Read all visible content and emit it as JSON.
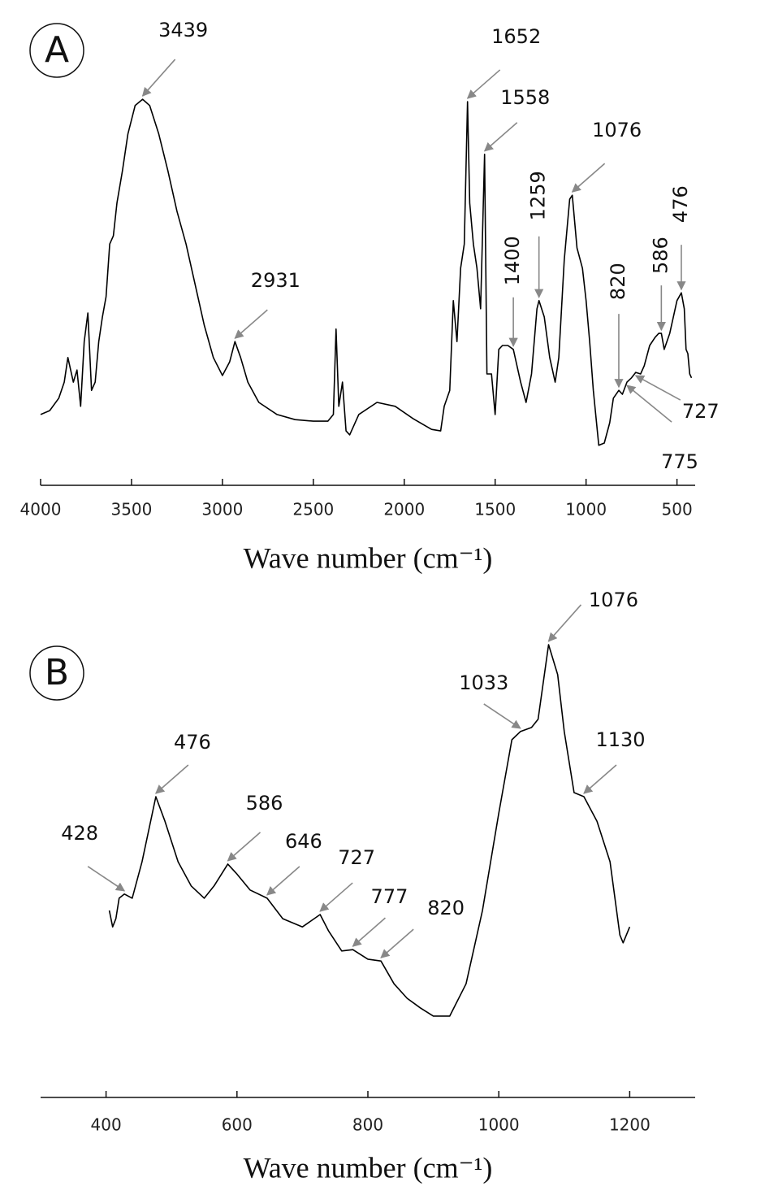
{
  "chart_data": [
    {
      "type": "line",
      "panel": "A",
      "xlabel": "Wave number (cm⁻¹)",
      "color": "#000000",
      "xlim": [
        4000,
        400
      ],
      "xticks": [
        4000,
        3500,
        3000,
        2500,
        2000,
        1500,
        1000,
        500
      ],
      "ylim": [
        0,
        100
      ],
      "x": [
        4000,
        3950,
        3900,
        3870,
        3850,
        3820,
        3800,
        3780,
        3760,
        3740,
        3720,
        3700,
        3680,
        3660,
        3640,
        3620,
        3600,
        3580,
        3550,
        3520,
        3480,
        3439,
        3400,
        3350,
        3300,
        3250,
        3200,
        3150,
        3100,
        3050,
        3000,
        2960,
        2931,
        2900,
        2860,
        2800,
        2700,
        2600,
        2500,
        2420,
        2390,
        2375,
        2360,
        2340,
        2320,
        2300,
        2250,
        2150,
        2050,
        1950,
        1850,
        1800,
        1780,
        1750,
        1730,
        1710,
        1690,
        1670,
        1652,
        1640,
        1620,
        1600,
        1580,
        1558,
        1545,
        1520,
        1500,
        1480,
        1460,
        1430,
        1400,
        1360,
        1330,
        1300,
        1270,
        1259,
        1230,
        1200,
        1170,
        1150,
        1120,
        1090,
        1076,
        1050,
        1020,
        1000,
        980,
        960,
        930,
        900,
        870,
        850,
        820,
        800,
        775,
        750,
        727,
        700,
        680,
        650,
        620,
        600,
        586,
        570,
        540,
        500,
        476,
        460,
        450,
        440,
        430,
        420
      ],
      "values": [
        14.6,
        15.6,
        18.8,
        22.9,
        29.2,
        22.9,
        26,
        16.7,
        33.3,
        40.6,
        20.8,
        22.9,
        33.3,
        39.6,
        44.8,
        58.3,
        60.4,
        68.8,
        77.1,
        86.5,
        93.8,
        95.4,
        93.8,
        86.5,
        77.1,
        66.7,
        58.3,
        47.9,
        37.5,
        29.2,
        24.6,
        28.1,
        33.3,
        29.2,
        22.9,
        17.7,
        14.6,
        13.3,
        12.9,
        12.9,
        14.6,
        36.5,
        16.7,
        22.9,
        10.4,
        9.4,
        14.6,
        17.7,
        16.7,
        13.5,
        10.8,
        10.4,
        16.7,
        20.8,
        43.8,
        33.3,
        52.1,
        58.3,
        94.8,
        68.8,
        58.3,
        52.1,
        41.7,
        81.3,
        25,
        25,
        14.6,
        31.3,
        32.3,
        32.3,
        31.3,
        22.9,
        17.7,
        25,
        41.7,
        43.8,
        39.6,
        29.2,
        22.9,
        29.2,
        54.2,
        69.8,
        70.8,
        57.3,
        52.1,
        43.8,
        33.3,
        20.8,
        6.7,
        7.3,
        12.5,
        18.8,
        20.8,
        19.8,
        22.9,
        24,
        25.4,
        25,
        27.1,
        32.3,
        34.4,
        35.4,
        35.4,
        31.3,
        35.4,
        43.8,
        45.8,
        41.7,
        31.3,
        30.2,
        25,
        24
      ],
      "annotations": [
        {
          "text": "3439",
          "x": 3439
        },
        {
          "text": "2931",
          "x": 2931
        },
        {
          "text": "1652",
          "x": 1652
        },
        {
          "text": "1558",
          "x": 1558
        },
        {
          "text": "1400",
          "x": 1400
        },
        {
          "text": "1259",
          "x": 1259
        },
        {
          "text": "1076",
          "x": 1076
        },
        {
          "text": "820",
          "x": 820
        },
        {
          "text": "586",
          "x": 586
        },
        {
          "text": "476",
          "x": 476
        },
        {
          "text": "727",
          "x": 727
        },
        {
          "text": "775",
          "x": 775
        }
      ]
    },
    {
      "type": "line",
      "panel": "B",
      "xlabel": "Wave number (cm⁻¹)",
      "color": "#000000",
      "xlim": [
        300,
        1300
      ],
      "xticks": [
        400,
        600,
        800,
        1000,
        1200
      ],
      "ylim": [
        0,
        100
      ],
      "x": [
        405,
        410,
        415,
        420,
        428,
        440,
        455,
        476,
        490,
        510,
        530,
        550,
        565,
        586,
        600,
        620,
        646,
        670,
        700,
        727,
        740,
        760,
        777,
        800,
        820,
        840,
        860,
        880,
        900,
        925,
        950,
        975,
        1000,
        1020,
        1033,
        1050,
        1060,
        1076,
        1090,
        1100,
        1115,
        1130,
        1150,
        1170,
        1185,
        1190,
        1200
      ],
      "values": [
        37.5,
        33.9,
        35.7,
        40.2,
        41.1,
        40.2,
        48.2,
        62.5,
        57.1,
        48.2,
        42.9,
        40.2,
        42.9,
        47.7,
        45.5,
        42,
        40.2,
        35.7,
        33.9,
        36.6,
        33,
        28.6,
        28.9,
        26.8,
        26.4,
        21.4,
        18.2,
        16.1,
        14.3,
        14.3,
        21.4,
        37.5,
        58.9,
        75,
        76.8,
        77.7,
        79.5,
        95.9,
        89.3,
        76.8,
        63.4,
        62.5,
        57.1,
        48.2,
        32.1,
        30.4,
        33.9
      ],
      "annotations": [
        {
          "text": "428",
          "x": 428
        },
        {
          "text": "476",
          "x": 476
        },
        {
          "text": "586",
          "x": 586
        },
        {
          "text": "646",
          "x": 646
        },
        {
          "text": "727",
          "x": 727
        },
        {
          "text": "777",
          "x": 777
        },
        {
          "text": "820",
          "x": 820
        },
        {
          "text": "1033",
          "x": 1033
        },
        {
          "text": "1076",
          "x": 1076
        },
        {
          "text": "1130",
          "x": 1130
        }
      ]
    }
  ]
}
